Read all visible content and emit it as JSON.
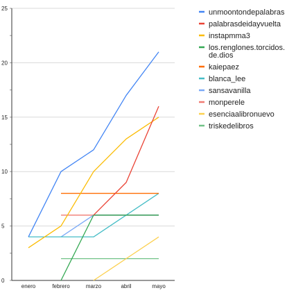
{
  "chart_data": {
    "type": "line",
    "title": "",
    "xlabel": "",
    "ylabel": "",
    "categories": [
      "enero",
      "febrero",
      "marzo",
      "abril",
      "mayo"
    ],
    "ylim": [
      0,
      25
    ],
    "yticks": [
      0,
      5,
      10,
      15,
      20,
      25
    ],
    "grid": true,
    "legend_position": "right",
    "series": [
      {
        "name": "unmoontondepalabras",
        "color": "#4285f4",
        "values": [
          4,
          10,
          12,
          17,
          21
        ]
      },
      {
        "name": "palabrasdeidayvuelta",
        "color": "#ea4335",
        "values": [
          null,
          null,
          6,
          9,
          16
        ]
      },
      {
        "name": "instapmma3",
        "color": "#fbbc04",
        "values": [
          3,
          5,
          10,
          13,
          15
        ]
      },
      {
        "name": "los.renglones.torcidos.de.dios",
        "color": "#34a853",
        "values": [
          null,
          0,
          6,
          6,
          6
        ]
      },
      {
        "name": "kaiepaez",
        "color": "#ff6d01",
        "values": [
          null,
          8,
          8,
          8,
          8
        ]
      },
      {
        "name": "blanca_lee",
        "color": "#46bdc6",
        "values": [
          4,
          4,
          4,
          6,
          8
        ]
      },
      {
        "name": "sansavanilla",
        "color": "#7baaf7",
        "values": [
          null,
          4,
          6,
          6,
          6
        ]
      },
      {
        "name": "monperele",
        "color": "#f07b72",
        "values": [
          null,
          6,
          6,
          6,
          6
        ]
      },
      {
        "name": "esenciaalibronuevo",
        "color": "#fcd04f",
        "values": [
          null,
          null,
          0,
          2,
          4
        ]
      },
      {
        "name": "triskedelibros",
        "color": "#71c287",
        "values": [
          null,
          2,
          2,
          2,
          2
        ]
      }
    ],
    "legend": [
      {
        "label": "unmoontondepalabras",
        "color": "#4285f4"
      },
      {
        "label": "palabrasdeidayvuelta",
        "color": "#ea4335"
      },
      {
        "label": "instapmma3",
        "color": "#fbbc04"
      },
      {
        "label": "los.renglones.torcidos.\nde.dios",
        "color": "#34a853"
      },
      {
        "label": "kaiepaez",
        "color": "#ff6d01"
      },
      {
        "label": "blanca_lee",
        "color": "#46bdc6"
      },
      {
        "label": "sansavanilla",
        "color": "#7baaf7"
      },
      {
        "label": "monperele",
        "color": "#f07b72"
      },
      {
        "label": "esenciaalibronuevo",
        "color": "#fcd04f"
      },
      {
        "label": "triskedelibros",
        "color": "#71c287"
      }
    ]
  }
}
